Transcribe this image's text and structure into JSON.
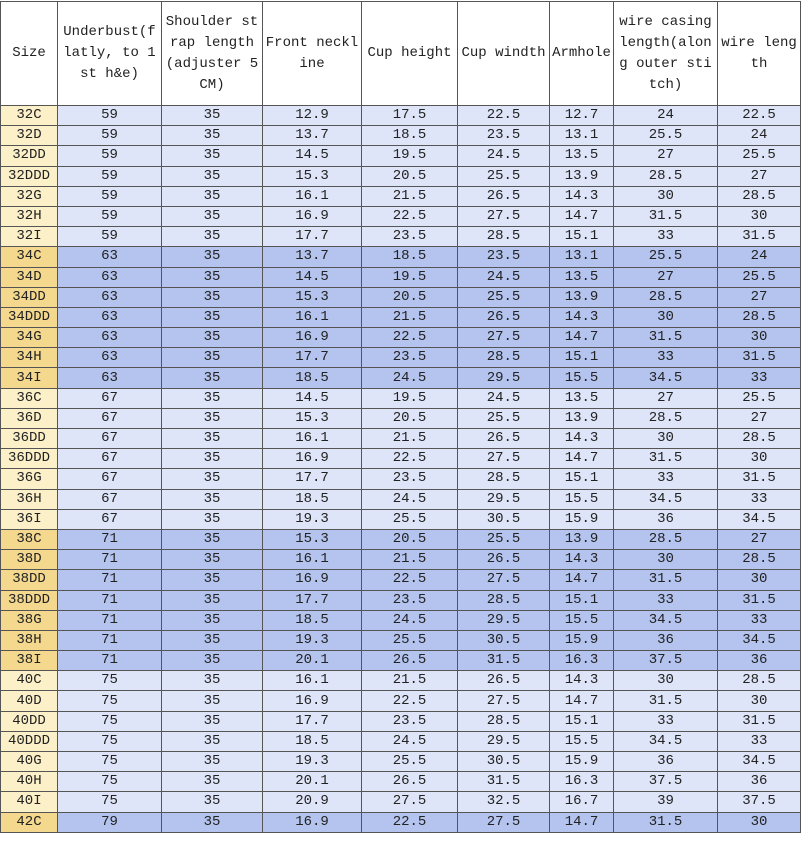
{
  "table": {
    "header": [
      "Size",
      "Underbust(flatly, to 1st h&e)",
      "Shoulder strap length(adjuster 5CM)",
      "Front neckline",
      "Cup height",
      "Cup windth",
      "Armhole",
      "wire casing length(along outer stitch)",
      "wire length"
    ],
    "rows": [
      [
        "32C",
        "59",
        "35",
        "12.9",
        "17.5",
        "22.5",
        "12.7",
        "24",
        "22.5"
      ],
      [
        "32D",
        "59",
        "35",
        "13.7",
        "18.5",
        "23.5",
        "13.1",
        "25.5",
        "24"
      ],
      [
        "32DD",
        "59",
        "35",
        "14.5",
        "19.5",
        "24.5",
        "13.5",
        "27",
        "25.5"
      ],
      [
        "32DDD",
        "59",
        "35",
        "15.3",
        "20.5",
        "25.5",
        "13.9",
        "28.5",
        "27"
      ],
      [
        "32G",
        "59",
        "35",
        "16.1",
        "21.5",
        "26.5",
        "14.3",
        "30",
        "28.5"
      ],
      [
        "32H",
        "59",
        "35",
        "16.9",
        "22.5",
        "27.5",
        "14.7",
        "31.5",
        "30"
      ],
      [
        "32I",
        "59",
        "35",
        "17.7",
        "23.5",
        "28.5",
        "15.1",
        "33",
        "31.5"
      ],
      [
        "34C",
        "63",
        "35",
        "13.7",
        "18.5",
        "23.5",
        "13.1",
        "25.5",
        "24"
      ],
      [
        "34D",
        "63",
        "35",
        "14.5",
        "19.5",
        "24.5",
        "13.5",
        "27",
        "25.5"
      ],
      [
        "34DD",
        "63",
        "35",
        "15.3",
        "20.5",
        "25.5",
        "13.9",
        "28.5",
        "27"
      ],
      [
        "34DDD",
        "63",
        "35",
        "16.1",
        "21.5",
        "26.5",
        "14.3",
        "30",
        "28.5"
      ],
      [
        "34G",
        "63",
        "35",
        "16.9",
        "22.5",
        "27.5",
        "14.7",
        "31.5",
        "30"
      ],
      [
        "34H",
        "63",
        "35",
        "17.7",
        "23.5",
        "28.5",
        "15.1",
        "33",
        "31.5"
      ],
      [
        "34I",
        "63",
        "35",
        "18.5",
        "24.5",
        "29.5",
        "15.5",
        "34.5",
        "33"
      ],
      [
        "36C",
        "67",
        "35",
        "14.5",
        "19.5",
        "24.5",
        "13.5",
        "27",
        "25.5"
      ],
      [
        "36D",
        "67",
        "35",
        "15.3",
        "20.5",
        "25.5",
        "13.9",
        "28.5",
        "27"
      ],
      [
        "36DD",
        "67",
        "35",
        "16.1",
        "21.5",
        "26.5",
        "14.3",
        "30",
        "28.5"
      ],
      [
        "36DDD",
        "67",
        "35",
        "16.9",
        "22.5",
        "27.5",
        "14.7",
        "31.5",
        "30"
      ],
      [
        "36G",
        "67",
        "35",
        "17.7",
        "23.5",
        "28.5",
        "15.1",
        "33",
        "31.5"
      ],
      [
        "36H",
        "67",
        "35",
        "18.5",
        "24.5",
        "29.5",
        "15.5",
        "34.5",
        "33"
      ],
      [
        "36I",
        "67",
        "35",
        "19.3",
        "25.5",
        "30.5",
        "15.9",
        "36",
        "34.5"
      ],
      [
        "38C",
        "71",
        "35",
        "15.3",
        "20.5",
        "25.5",
        "13.9",
        "28.5",
        "27"
      ],
      [
        "38D",
        "71",
        "35",
        "16.1",
        "21.5",
        "26.5",
        "14.3",
        "30",
        "28.5"
      ],
      [
        "38DD",
        "71",
        "35",
        "16.9",
        "22.5",
        "27.5",
        "14.7",
        "31.5",
        "30"
      ],
      [
        "38DDD",
        "71",
        "35",
        "17.7",
        "23.5",
        "28.5",
        "15.1",
        "33",
        "31.5"
      ],
      [
        "38G",
        "71",
        "35",
        "18.5",
        "24.5",
        "29.5",
        "15.5",
        "34.5",
        "33"
      ],
      [
        "38H",
        "71",
        "35",
        "19.3",
        "25.5",
        "30.5",
        "15.9",
        "36",
        "34.5"
      ],
      [
        "38I",
        "71",
        "35",
        "20.1",
        "26.5",
        "31.5",
        "16.3",
        "37.5",
        "36"
      ],
      [
        "40C",
        "75",
        "35",
        "16.1",
        "21.5",
        "26.5",
        "14.3",
        "30",
        "28.5"
      ],
      [
        "40D",
        "75",
        "35",
        "16.9",
        "22.5",
        "27.5",
        "14.7",
        "31.5",
        "30"
      ],
      [
        "40DD",
        "75",
        "35",
        "17.7",
        "23.5",
        "28.5",
        "15.1",
        "33",
        "31.5"
      ],
      [
        "40DDD",
        "75",
        "35",
        "18.5",
        "24.5",
        "29.5",
        "15.5",
        "34.5",
        "33"
      ],
      [
        "40G",
        "75",
        "35",
        "19.3",
        "25.5",
        "30.5",
        "15.9",
        "36",
        "34.5"
      ],
      [
        "40H",
        "75",
        "35",
        "20.1",
        "26.5",
        "31.5",
        "16.3",
        "37.5",
        "36"
      ],
      [
        "40I",
        "75",
        "35",
        "20.9",
        "27.5",
        "32.5",
        "16.7",
        "39",
        "37.5"
      ],
      [
        "42C",
        "79",
        "35",
        "16.9",
        "22.5",
        "27.5",
        "14.7",
        "31.5",
        "30"
      ]
    ]
  }
}
